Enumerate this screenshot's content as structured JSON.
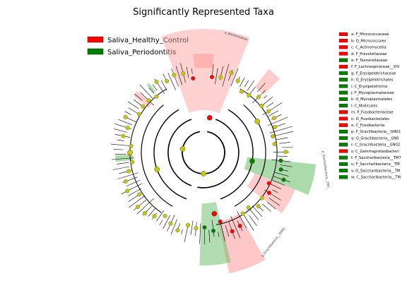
{
  "title": "Significantly Represented Taxa",
  "colors": {
    "healthy": "#ff0000",
    "periodontitis": "#008000",
    "neutral_node": "#c8c800",
    "healthy_shade": "#ff9999",
    "periodontitis_shade": "#66bb66"
  },
  "groups": [
    {
      "name": "Saliva_Healthy_Control",
      "color": "#ff0000"
    },
    {
      "name": "Saliva_Periodontitis",
      "color": "#008000"
    }
  ],
  "key": [
    {
      "text": "a: F_Micrococcaceae",
      "group": "healthy"
    },
    {
      "text": "b: O_Micrococcales",
      "group": "healthy"
    },
    {
      "text": "c: C_Actinomycetia",
      "group": "healthy"
    },
    {
      "text": "d: F_Prevotellaceae",
      "group": "healthy"
    },
    {
      "text": "e: F_Tannerellaceae",
      "group": "periodontitis"
    },
    {
      "text": "f: F_Lachnospiraceae__XIV",
      "group": "healthy"
    },
    {
      "text": "g: F_Erysipelotrichaceae",
      "group": "periodontitis"
    },
    {
      "text": "h: O_Erysipelotrichales",
      "group": "periodontitis"
    },
    {
      "text": "i: C_Erysipelotrichia",
      "group": "periodontitis"
    },
    {
      "text": "j: F_Mycoplasmataceae",
      "group": "periodontitis"
    },
    {
      "text": "k: O_Mycoplasmatales",
      "group": "periodontitis"
    },
    {
      "text": "l: C_Mollicutes",
      "group": "periodontitis"
    },
    {
      "text": "m: F_Fusobacteriaceae",
      "group": "healthy"
    },
    {
      "text": "n: O_Fusobacteriales",
      "group": "healthy"
    },
    {
      "text": "o: C_Fusobacteriia",
      "group": "healthy"
    },
    {
      "text": "p: F_Gracilibacteria__GN02",
      "group": "periodontitis"
    },
    {
      "text": "q: O_Gracilibacteria__GN0",
      "group": "periodontitis"
    },
    {
      "text": "r: C_Gracilibacteria__GN02",
      "group": "periodontitis"
    },
    {
      "text": "s: C_Gammaproteobacteri",
      "group": "healthy"
    },
    {
      "text": "t: F_Saccharibacteria__TM7",
      "group": "periodontitis"
    },
    {
      "text": "u: F_Saccharibacteria__TM",
      "group": "periodontitis"
    },
    {
      "text": "v: O_Saccharibacteria__TM",
      "group": "periodontitis"
    },
    {
      "text": "w: C_Saccharibacteria__TM",
      "group": "periodontitis"
    }
  ],
  "clade_labels": {
    "bacteroidetes": "p_Bacteroidetes",
    "saccharibacteria": "p_Saccharibacteria__TM7_",
    "gracilibacteria": "p_Gracilibacteria__GN02"
  }
}
